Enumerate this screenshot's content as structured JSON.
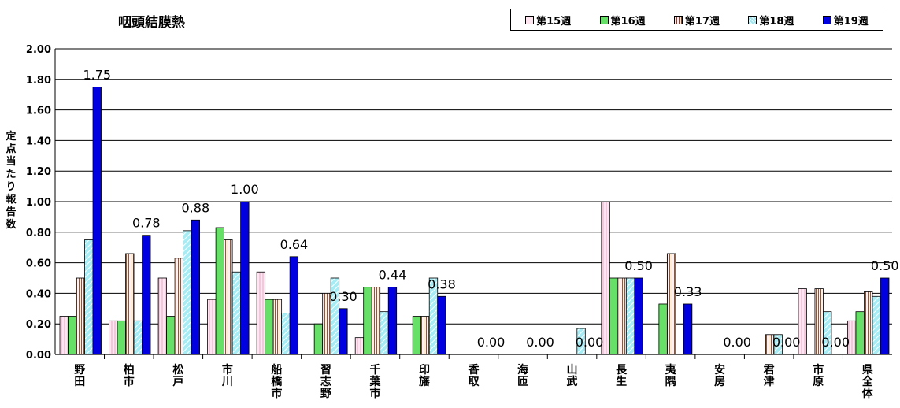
{
  "chart_data": {
    "type": "bar",
    "title": "咽頭結膜熱",
    "ylabel": "定点当たり報告数",
    "xlabel": "",
    "ylim": [
      0,
      2.0
    ],
    "yticks": [
      "0.00",
      "0.20",
      "0.40",
      "0.60",
      "0.80",
      "1.00",
      "1.20",
      "1.40",
      "1.60",
      "1.80",
      "2.00"
    ],
    "grid": true,
    "legend_position": "top-right",
    "categories": [
      "野田",
      "柏市",
      "松戸",
      "市川",
      "船橋市",
      "習志野",
      "千葉市",
      "印旛",
      "香取",
      "海匝",
      "山武",
      "長生",
      "夷隅",
      "安房",
      "君津",
      "市原",
      "県全体"
    ],
    "series": [
      {
        "name": "第15週",
        "color": "#ffe6f0",
        "pattern": "pink-hatch",
        "values": [
          0.25,
          0.22,
          0.5,
          0.36,
          0.54,
          0,
          0.11,
          0,
          0,
          0,
          0,
          1.0,
          0,
          0,
          0,
          0.43,
          0.22
        ]
      },
      {
        "name": "第16週",
        "color": "#66e066",
        "pattern": "solid",
        "values": [
          0.25,
          0.22,
          0.25,
          0.83,
          0.36,
          0.2,
          0.44,
          0.25,
          0,
          0,
          0,
          0.5,
          0.33,
          0,
          0,
          0,
          0.28
        ]
      },
      {
        "name": "第17週",
        "color": "#ffe6f0",
        "pattern": "brown-hatch",
        "values": [
          0.5,
          0.66,
          0.63,
          0.75,
          0.36,
          0.4,
          0.44,
          0.25,
          0,
          0,
          0,
          0.5,
          0.66,
          0,
          0.13,
          0.43,
          0.41
        ]
      },
      {
        "name": "第18週",
        "color": "#9fe6f0",
        "pattern": "cyan-hatch",
        "values": [
          0.75,
          0.22,
          0.81,
          0.54,
          0.27,
          0.5,
          0.28,
          0.5,
          0,
          0,
          0.17,
          0.5,
          0,
          0,
          0.13,
          0.28,
          0.38
        ]
      },
      {
        "name": "第19週",
        "color": "#0000e0",
        "pattern": "solid",
        "values": [
          1.75,
          0.78,
          0.88,
          1.0,
          0.64,
          0.3,
          0.44,
          0.38,
          0,
          0,
          0,
          0.5,
          0.33,
          0,
          0,
          0,
          0.5
        ]
      }
    ],
    "data_labels": [
      "1.75",
      "0.78",
      "0.88",
      "1.00",
      "0.64",
      "0.30",
      "0.44",
      "0.38",
      "0.00",
      "0.00",
      "0.00",
      "0.50",
      "0.33",
      "0.00",
      "0.00",
      "0.00",
      "0.50"
    ]
  }
}
